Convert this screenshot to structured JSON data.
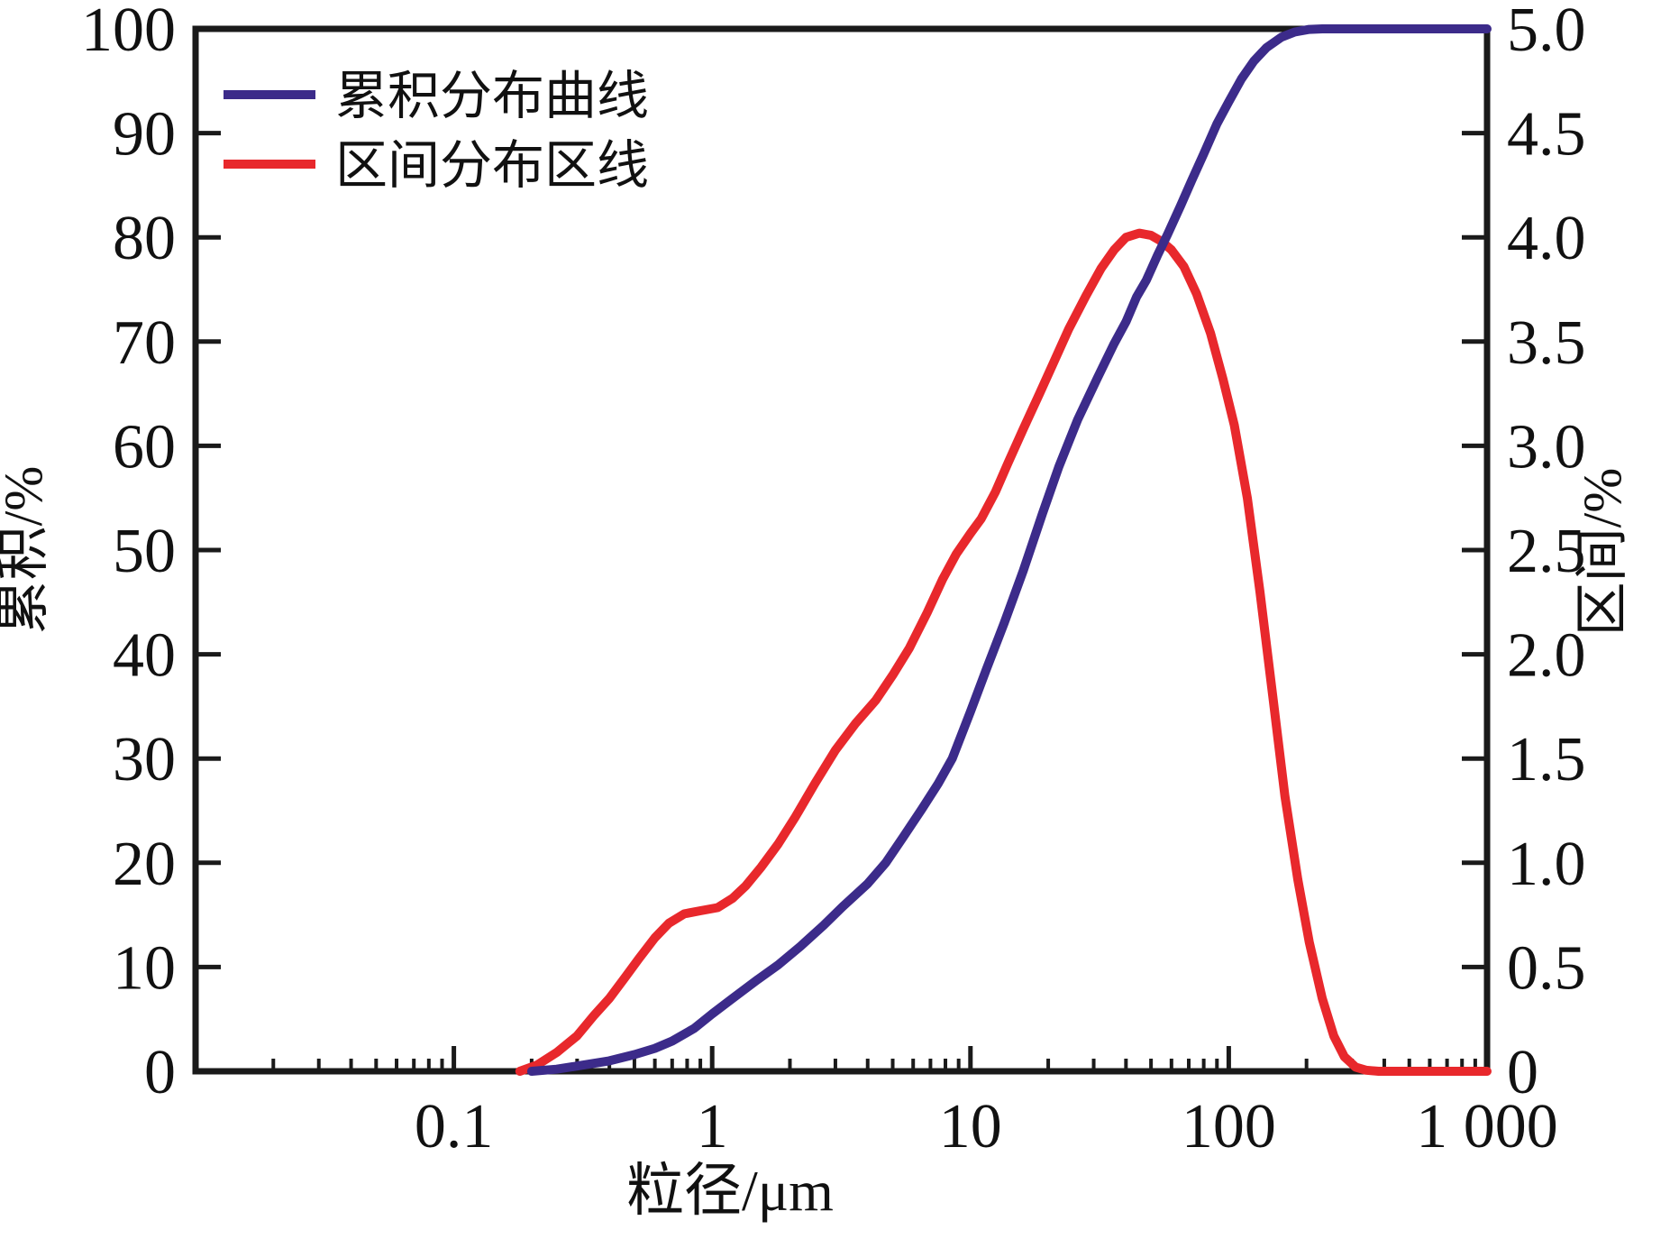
{
  "figure": {
    "xlabel": "粒径/μm",
    "ylabel_left": "累积/%",
    "ylabel_right": "区间/%",
    "legend": [
      {
        "label": "累积分布曲线",
        "color": "#3c2b8a"
      },
      {
        "label": "区间分布区线",
        "color": "#e8282c"
      }
    ],
    "frame_color": "#1a1a1a"
  },
  "chart_data": {
    "type": "line",
    "title": "",
    "xlabel": "粒径/μm",
    "legend_position": "top-left",
    "grid": false,
    "x_axis": {
      "scale": "log",
      "min": 0.01,
      "max": 1000,
      "major_ticks": [
        0.1,
        1,
        10,
        100,
        1000
      ],
      "major_tick_labels": [
        "0.1",
        "1",
        "10",
        "100",
        "1 000"
      ]
    },
    "y_axis_left": {
      "label": "累积/%",
      "min": 0,
      "max": 100,
      "ticks": [
        0,
        10,
        20,
        30,
        40,
        50,
        60,
        70,
        80,
        90,
        100
      ],
      "tick_labels": [
        "0",
        "10",
        "20",
        "30",
        "40",
        "50",
        "60",
        "70",
        "80",
        "90",
        "100"
      ]
    },
    "y_axis_right": {
      "label": "区间/%",
      "min": 0,
      "max": 5,
      "ticks": [
        0,
        0.5,
        1,
        1.5,
        2,
        2.5,
        3,
        3.5,
        4,
        4.5,
        5
      ],
      "tick_labels": [
        "0",
        "0.5",
        "1.0",
        "1.5",
        "2.0",
        "2.5",
        "3.0",
        "3.5",
        "4.0",
        "4.5",
        "5.0"
      ]
    },
    "series": [
      {
        "name": "累积分布曲线",
        "axis": "left",
        "color": "#3c2b8a",
        "points": [
          [
            0.2,
            0
          ],
          [
            0.25,
            0.2
          ],
          [
            0.3,
            0.5
          ],
          [
            0.4,
            1
          ],
          [
            0.5,
            1.6
          ],
          [
            0.6,
            2.2
          ],
          [
            0.7,
            2.9
          ],
          [
            0.85,
            4.1
          ],
          [
            1,
            5.5
          ],
          [
            1.2,
            7
          ],
          [
            1.5,
            8.8
          ],
          [
            1.8,
            10.2
          ],
          [
            2.2,
            12
          ],
          [
            2.7,
            14
          ],
          [
            3.2,
            15.8
          ],
          [
            4,
            18
          ],
          [
            4.7,
            20
          ],
          [
            5.5,
            22.5
          ],
          [
            6.5,
            25.2
          ],
          [
            7.5,
            27.6
          ],
          [
            8.5,
            30
          ],
          [
            10,
            34.5
          ],
          [
            11.5,
            38.5
          ],
          [
            13.5,
            43
          ],
          [
            16,
            48
          ],
          [
            19,
            53.5
          ],
          [
            22,
            58
          ],
          [
            26,
            62.5
          ],
          [
            31,
            66.5
          ],
          [
            36,
            69.8
          ],
          [
            40,
            71.9
          ],
          [
            44,
            74.3
          ],
          [
            48,
            75.9
          ],
          [
            53,
            78.3
          ],
          [
            58,
            80.3
          ],
          [
            65,
            83
          ],
          [
            72,
            85.5
          ],
          [
            80,
            88
          ],
          [
            90,
            90.9
          ],
          [
            100,
            93
          ],
          [
            112,
            95.2
          ],
          [
            125,
            96.9
          ],
          [
            140,
            98.2
          ],
          [
            160,
            99.2
          ],
          [
            180,
            99.7
          ],
          [
            205,
            99.95
          ],
          [
            230,
            100
          ],
          [
            300,
            100
          ],
          [
            500,
            100
          ],
          [
            1000,
            100
          ]
        ]
      },
      {
        "name": "区间分布区线",
        "axis": "right",
        "color": "#e8282c",
        "points": [
          [
            0.18,
            0
          ],
          [
            0.21,
            0.03
          ],
          [
            0.25,
            0.09
          ],
          [
            0.3,
            0.17
          ],
          [
            0.35,
            0.27
          ],
          [
            0.4,
            0.35
          ],
          [
            0.46,
            0.45
          ],
          [
            0.52,
            0.54
          ],
          [
            0.6,
            0.64
          ],
          [
            0.68,
            0.71
          ],
          [
            0.78,
            0.755
          ],
          [
            0.9,
            0.77
          ],
          [
            1.05,
            0.785
          ],
          [
            1.2,
            0.83
          ],
          [
            1.35,
            0.89
          ],
          [
            1.55,
            0.98
          ],
          [
            1.8,
            1.09
          ],
          [
            2.1,
            1.22
          ],
          [
            2.5,
            1.38
          ],
          [
            3,
            1.54
          ],
          [
            3.6,
            1.67
          ],
          [
            4.3,
            1.78
          ],
          [
            5,
            1.9
          ],
          [
            5.8,
            2.03
          ],
          [
            6.8,
            2.2
          ],
          [
            7.8,
            2.36
          ],
          [
            8.8,
            2.48
          ],
          [
            10,
            2.58
          ],
          [
            11,
            2.65
          ],
          [
            12.5,
            2.78
          ],
          [
            14,
            2.92
          ],
          [
            16,
            3.08
          ],
          [
            18.5,
            3.25
          ],
          [
            21,
            3.4
          ],
          [
            24,
            3.56
          ],
          [
            28,
            3.72
          ],
          [
            32,
            3.85
          ],
          [
            36,
            3.94
          ],
          [
            40,
            4
          ],
          [
            45,
            4.02
          ],
          [
            50,
            4.01
          ],
          [
            55,
            3.98
          ],
          [
            60,
            3.94
          ],
          [
            67,
            3.86
          ],
          [
            75,
            3.73
          ],
          [
            85,
            3.54
          ],
          [
            95,
            3.32
          ],
          [
            105,
            3.1
          ],
          [
            118,
            2.75
          ],
          [
            132,
            2.3
          ],
          [
            148,
            1.8
          ],
          [
            165,
            1.32
          ],
          [
            185,
            0.92
          ],
          [
            205,
            0.62
          ],
          [
            230,
            0.35
          ],
          [
            255,
            0.17
          ],
          [
            280,
            0.07
          ],
          [
            310,
            0.02
          ],
          [
            340,
            0.005
          ],
          [
            380,
            0
          ],
          [
            500,
            0
          ],
          [
            700,
            0
          ],
          [
            1000,
            0
          ]
        ]
      }
    ]
  }
}
